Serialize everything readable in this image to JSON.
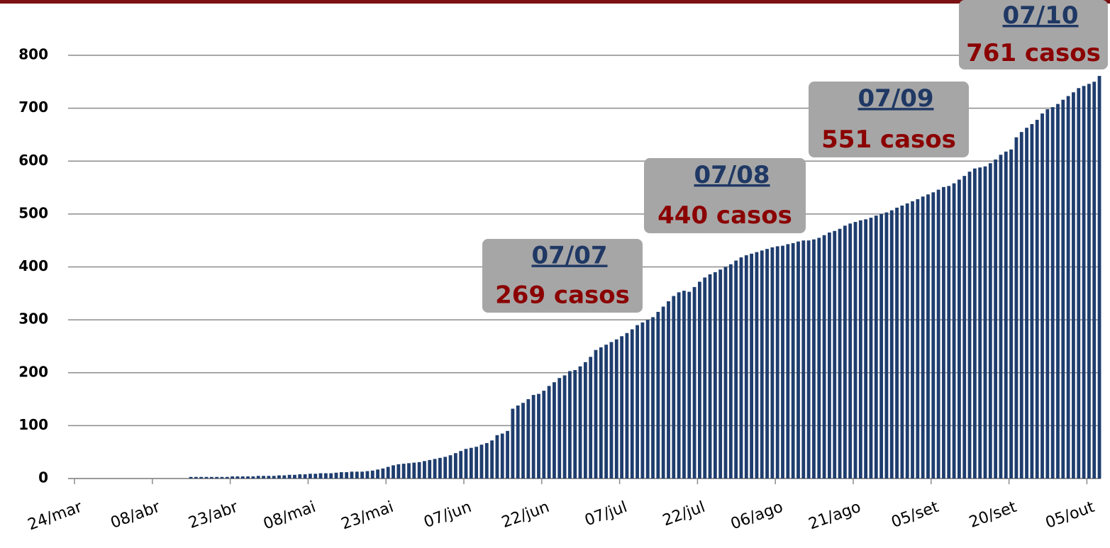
{
  "chart_data": {
    "type": "bar",
    "color": "#1f3d6e",
    "grid": true,
    "ylim": [
      0,
      800
    ],
    "yticks": [
      0,
      100,
      200,
      300,
      400,
      500,
      600,
      700,
      800
    ],
    "categories": [
      "24/mar",
      null,
      null,
      null,
      null,
      null,
      null,
      null,
      null,
      null,
      null,
      null,
      null,
      null,
      null,
      "08/abr",
      null,
      null,
      null,
      null,
      null,
      null,
      null,
      null,
      null,
      null,
      null,
      null,
      null,
      null,
      "23/abr",
      null,
      null,
      null,
      null,
      null,
      null,
      null,
      null,
      null,
      null,
      null,
      null,
      null,
      null,
      "08/mai",
      null,
      null,
      null,
      null,
      null,
      null,
      null,
      null,
      null,
      null,
      null,
      null,
      null,
      null,
      "23/mai",
      null,
      null,
      null,
      null,
      null,
      null,
      null,
      null,
      null,
      null,
      null,
      null,
      null,
      null,
      "07/jun",
      null,
      null,
      null,
      null,
      null,
      null,
      null,
      null,
      null,
      null,
      null,
      null,
      null,
      null,
      "22/jun",
      null,
      null,
      null,
      null,
      null,
      null,
      null,
      null,
      null,
      null,
      null,
      null,
      null,
      null,
      "07/jul",
      null,
      null,
      null,
      null,
      null,
      null,
      null,
      null,
      null,
      null,
      null,
      null,
      null,
      null,
      "22/jul",
      null,
      null,
      null,
      null,
      null,
      null,
      null,
      null,
      null,
      null,
      null,
      null,
      null,
      null,
      "06/ago",
      null,
      null,
      null,
      null,
      null,
      null,
      null,
      null,
      null,
      null,
      null,
      null,
      null,
      null,
      "21/ago",
      null,
      null,
      null,
      null,
      null,
      null,
      null,
      null,
      null,
      null,
      null,
      null,
      null,
      null,
      "05/set",
      null,
      null,
      null,
      null,
      null,
      null,
      null,
      null,
      null,
      null,
      null,
      null,
      null,
      null,
      "20/set",
      null,
      null,
      null,
      null,
      null,
      null,
      null,
      null,
      null,
      null,
      null,
      null,
      null,
      null,
      "05/out",
      null,
      null
    ],
    "values": [
      0,
      0,
      0,
      0,
      0,
      0,
      0,
      0,
      0,
      0,
      0,
      0,
      0,
      0,
      0,
      0,
      0,
      0,
      0,
      0,
      0,
      0,
      3,
      3,
      3,
      3,
      3,
      3,
      3,
      3,
      4,
      4,
      4,
      4,
      4,
      5,
      5,
      5,
      5,
      6,
      6,
      7,
      7,
      8,
      8,
      9,
      9,
      10,
      10,
      10,
      11,
      12,
      12,
      13,
      13,
      13,
      14,
      15,
      17,
      19,
      22,
      25,
      27,
      28,
      29,
      30,
      31,
      33,
      35,
      37,
      39,
      41,
      44,
      48,
      52,
      56,
      58,
      60,
      64,
      67,
      72,
      82,
      85,
      90,
      132,
      138,
      143,
      150,
      158,
      160,
      166,
      175,
      182,
      190,
      195,
      203,
      205,
      212,
      220,
      230,
      243,
      248,
      253,
      258,
      263,
      269,
      275,
      282,
      290,
      295,
      300,
      305,
      315,
      325,
      335,
      345,
      352,
      355,
      353,
      362,
      372,
      380,
      386,
      390,
      395,
      400,
      405,
      412,
      418,
      422,
      425,
      428,
      431,
      434,
      437,
      439,
      440,
      443,
      445,
      448,
      450,
      450,
      452,
      455,
      460,
      465,
      468,
      472,
      478,
      482,
      485,
      488,
      490,
      493,
      497,
      500,
      503,
      507,
      512,
      516,
      520,
      524,
      528,
      533,
      537,
      541,
      546,
      551,
      553,
      558,
      565,
      572,
      580,
      586,
      588,
      590,
      596,
      603,
      612,
      618,
      622,
      645,
      655,
      663,
      670,
      678,
      690,
      698,
      702,
      708,
      716,
      723,
      730,
      738,
      742,
      746,
      750,
      761
    ],
    "annotations": [
      {
        "date": "07/07",
        "text": "269 casos"
      },
      {
        "date": "07/08",
        "text": "440 casos"
      },
      {
        "date": "07/09",
        "text": "551 casos"
      },
      {
        "date": "07/10",
        "text": "761 casos"
      }
    ]
  }
}
